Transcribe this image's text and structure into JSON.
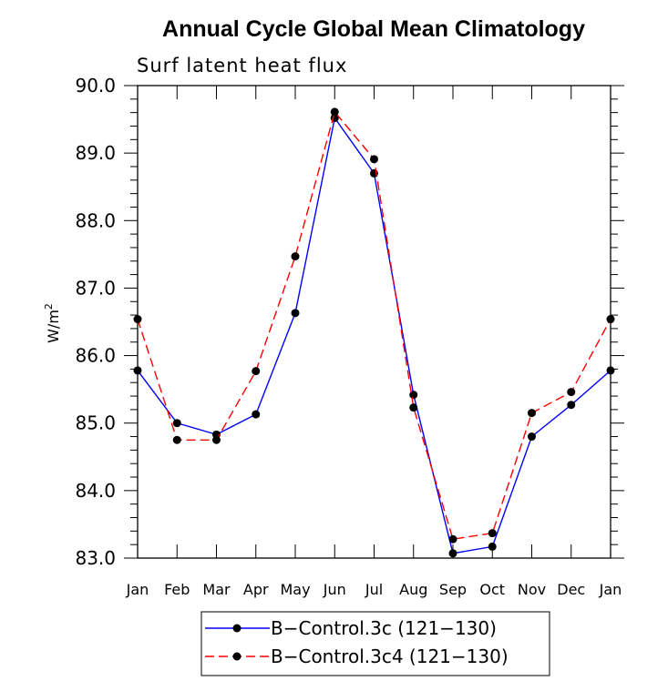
{
  "chart_data": {
    "type": "line",
    "title": "Annual Cycle Global Mean Climatology",
    "subtitle": "Surf latent heat flux",
    "ylabel": "W/m",
    "ylabel_superscript": "2",
    "xlabel": "",
    "ylim": [
      83.0,
      90.0
    ],
    "yticks": [
      "83.0",
      "84.0",
      "85.0",
      "86.0",
      "87.0",
      "88.0",
      "89.0",
      "90.0"
    ],
    "categories": [
      "Jan",
      "Feb",
      "Mar",
      "Apr",
      "May",
      "Jun",
      "Jul",
      "Aug",
      "Sep",
      "Oct",
      "Nov",
      "Dec",
      "Jan"
    ],
    "series": [
      {
        "name": "B−Control.3c (121−130)",
        "color": "#0000ff",
        "dash": "solid",
        "values": [
          85.78,
          85.0,
          84.83,
          85.13,
          86.63,
          89.52,
          88.7,
          85.42,
          83.07,
          83.17,
          84.8,
          85.27,
          85.78
        ]
      },
      {
        "name": "B−Control.3c4 (121−130)",
        "color": "#ff0000",
        "dash": "dashed",
        "values": [
          86.54,
          84.75,
          84.75,
          85.77,
          87.47,
          89.61,
          88.91,
          85.23,
          83.28,
          83.37,
          85.15,
          85.46,
          86.54
        ]
      }
    ],
    "marker": "filled-circle",
    "legend_position": "bottom-center"
  }
}
